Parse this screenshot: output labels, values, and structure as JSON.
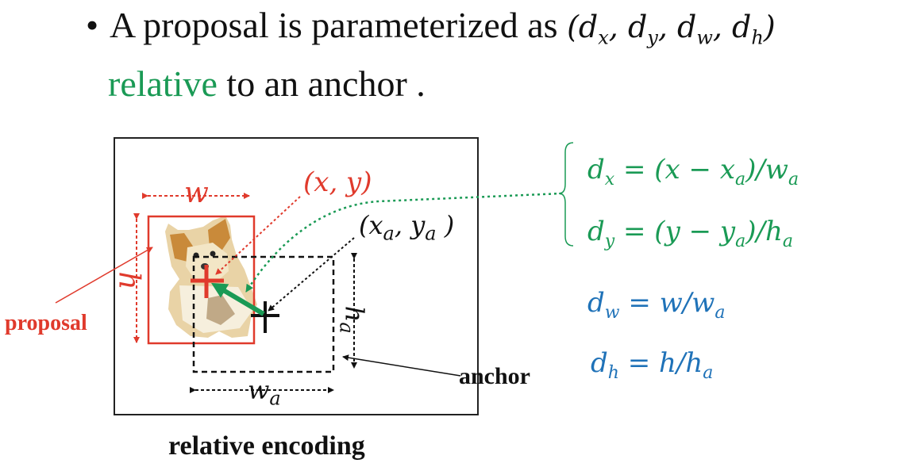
{
  "header": {
    "bullet": "•",
    "line1_text": "A proposal is parameterized as",
    "line1_math": "(d<sub>x</sub>, d<sub>y</sub>, d<sub>w</sub>, d<sub>h</sub>)",
    "line2_green": "relative",
    "line2_rest": " to an anchor ."
  },
  "diagram": {
    "label_w": "w",
    "label_h": "h",
    "label_xy": "(x, y)",
    "label_xaya": "(x<sub>a</sub>, y<sub>a</sub> )",
    "label_ha": "h<sub>a</sub>",
    "label_wa": "w<sub>a</sub>",
    "label_proposal": "proposal",
    "label_anchor": "anchor",
    "caption": "relative encoding"
  },
  "equations": {
    "dx": "d<sub>x</sub> = (x − x<sub>a</sub>)/w<sub>a</sub>",
    "dy": "d<sub>y</sub> = (y − y<sub>a</sub>)/h<sub>a</sub>",
    "dw": "d<sub>w</sub> = w/w<sub>a</sub>",
    "dh": "d<sub>h</sub> = h/h<sub>a</sub>"
  },
  "colors": {
    "proposal": "#e03a2c",
    "green": "#1a9a55",
    "blue": "#1f72b8",
    "black": "#111111"
  },
  "image_subject": "puppy-cutout"
}
